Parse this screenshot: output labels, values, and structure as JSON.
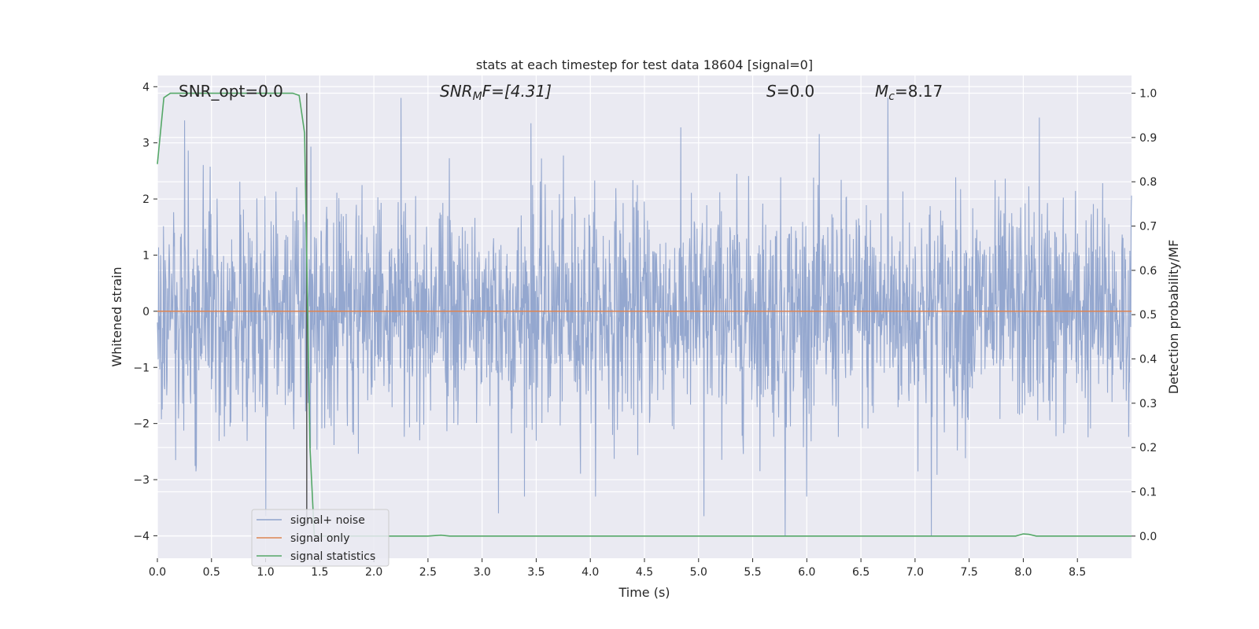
{
  "chart_data": {
    "type": "line",
    "title": "stats at each timestep for test data 18604 [signal=0]",
    "xlabel": "Time (s)",
    "ylabel_left": "Whitened strain",
    "ylabel_right": "Detection probability/MF",
    "xlim": [
      0.0,
      9.0
    ],
    "ylim_left": [
      -4.4,
      4.2
    ],
    "ylim_right": [
      -0.05,
      1.04
    ],
    "x_ticks": [
      "0.0",
      "0.5",
      "1.0",
      "1.5",
      "2.0",
      "2.5",
      "3.0",
      "3.5",
      "4.0",
      "4.5",
      "5.0",
      "5.5",
      "6.0",
      "6.5",
      "7.0",
      "7.5",
      "8.0",
      "8.5"
    ],
    "y_ticks_left": [
      "4",
      "3",
      "2",
      "1",
      "0",
      "−1",
      "−2",
      "−3",
      "−4"
    ],
    "y_ticks_right": [
      "1.0",
      "0.9",
      "0.8",
      "0.7",
      "0.6",
      "0.5",
      "0.4",
      "0.3",
      "0.2",
      "0.1",
      "0.0"
    ],
    "grid": true,
    "annotations": {
      "snr_opt": "SNR_opt=0.0",
      "snr_mf_main": "SNR",
      "snr_mf_sub": "M",
      "snr_mf_rest": "F=[4.31]",
      "s_main": "S",
      "s_rest": "=0.0",
      "mc_main": "M",
      "mc_sub": "c",
      "mc_rest": "=8.17"
    },
    "marker_line_x": 1.38,
    "series": [
      {
        "name": "signal+ noise",
        "color": "#8fa3cc",
        "style": "noise",
        "sigma": 1.0,
        "notable_extremes": [
          {
            "x": 0.25,
            "y": 3.4
          },
          {
            "x": 2.25,
            "y": 3.8
          },
          {
            "x": 6.75,
            "y": 3.8
          },
          {
            "x": 8.15,
            "y": 3.45
          },
          {
            "x": 3.45,
            "y": 3.35
          },
          {
            "x": 5.8,
            "y": -4.0
          },
          {
            "x": 7.15,
            "y": -4.0
          },
          {
            "x": 1.0,
            "y": -3.65
          },
          {
            "x": 3.15,
            "y": -3.6
          },
          {
            "x": 5.05,
            "y": -3.65
          }
        ]
      },
      {
        "name": "signal only",
        "color": "#dd8452",
        "x": [
          0.0,
          9.0
        ],
        "y": [
          0.0,
          0.0
        ]
      },
      {
        "name": "signal statistics",
        "color": "#55a868",
        "axis": "right",
        "x": [
          0.0,
          0.06,
          0.12,
          0.5,
          1.0,
          1.25,
          1.31,
          1.36,
          1.41,
          1.45,
          1.5,
          2.5,
          2.62,
          2.7,
          4.0,
          6.0,
          7.93,
          8.0,
          8.05,
          8.12,
          9.0
        ],
        "y": [
          0.84,
          0.99,
          1.0,
          1.0,
          1.0,
          1.0,
          0.995,
          0.91,
          0.2,
          0.0,
          0.0,
          0.0,
          0.002,
          0.0,
          0.0,
          0.0,
          0.0,
          0.005,
          0.004,
          0.0,
          0.0
        ]
      }
    ],
    "legend": {
      "placement": "lower-left",
      "entries": [
        "signal+ noise",
        "signal only",
        "signal statistics"
      ]
    }
  },
  "colors": {
    "plot_bg": "#eaeaf2",
    "grid": "#ffffff",
    "text": "#262626",
    "marker_line": "#555555"
  }
}
